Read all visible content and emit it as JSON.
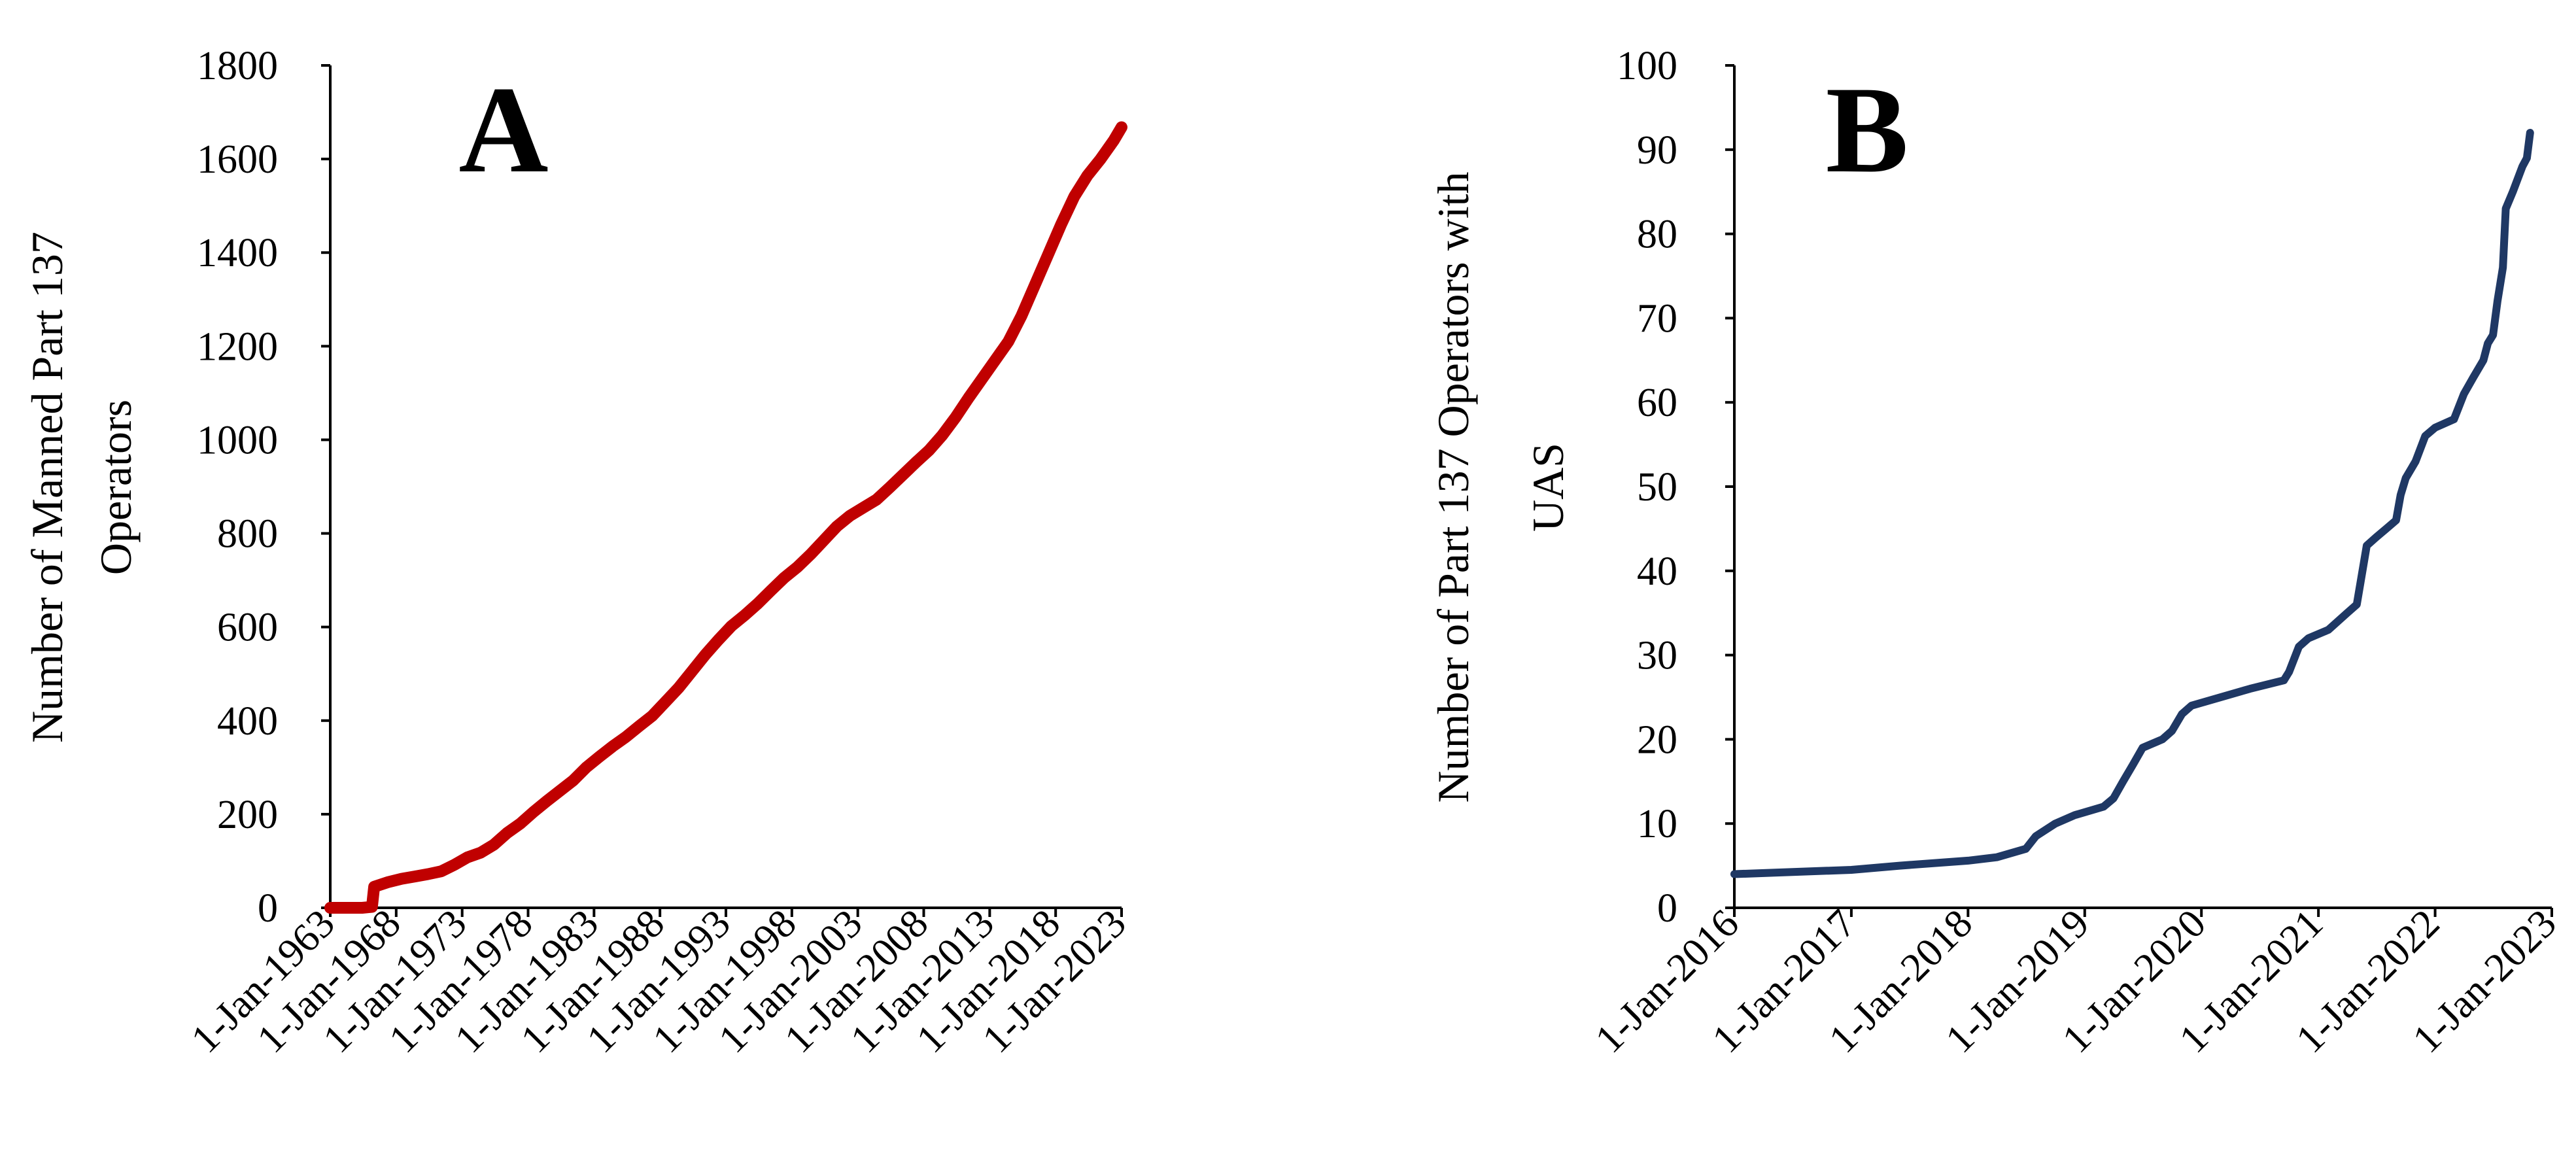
{
  "chart_data": [
    {
      "type": "line",
      "panel_label": "A",
      "title": "",
      "xlabel": "",
      "ylabel_lines": [
        "Number of Manned Part 137",
        "Operators"
      ],
      "ylim": [
        0,
        1800
      ],
      "y_ticks": [
        0,
        200,
        400,
        600,
        800,
        1000,
        1200,
        1400,
        1600,
        1800
      ],
      "x_ticks": [
        {
          "date": "1963-01-01",
          "label": "1-Jan-1963"
        },
        {
          "date": "1968-01-01",
          "label": "1-Jan-1968"
        },
        {
          "date": "1973-01-01",
          "label": "1-Jan-1973"
        },
        {
          "date": "1978-01-01",
          "label": "1-Jan-1978"
        },
        {
          "date": "1983-01-01",
          "label": "1-Jan-1983"
        },
        {
          "date": "1988-01-01",
          "label": "1-Jan-1988"
        },
        {
          "date": "1993-01-01",
          "label": "1-Jan-1993"
        },
        {
          "date": "1998-01-01",
          "label": "1-Jan-1998"
        },
        {
          "date": "2003-01-01",
          "label": "1-Jan-2003"
        },
        {
          "date": "2008-01-01",
          "label": "1-Jan-2008"
        },
        {
          "date": "2013-01-01",
          "label": "1-Jan-2013"
        },
        {
          "date": "2018-01-01",
          "label": "1-Jan-2018"
        },
        {
          "date": "2023-01-01",
          "label": "1-Jan-2023"
        }
      ],
      "grid": false,
      "series": [
        {
          "color": "#c00000",
          "points": [
            [
              "1963-01-01",
              0
            ],
            [
              "1965-06-01",
              0
            ],
            [
              "1966-03-01",
              2
            ],
            [
              "1966-05-01",
              45
            ],
            [
              "1967-06-01",
              55
            ],
            [
              "1968-06-01",
              62
            ],
            [
              "1969-06-01",
              67
            ],
            [
              "1970-06-01",
              72
            ],
            [
              "1971-06-01",
              78
            ],
            [
              "1972-06-01",
              92
            ],
            [
              "1973-06-01",
              108
            ],
            [
              "1974-06-01",
              118
            ],
            [
              "1975-06-01",
              135
            ],
            [
              "1976-06-01",
              160
            ],
            [
              "1977-06-01",
              180
            ],
            [
              "1978-06-01",
              205
            ],
            [
              "1979-06-01",
              228
            ],
            [
              "1980-06-01",
              250
            ],
            [
              "1981-06-01",
              272
            ],
            [
              "1982-06-01",
              300
            ],
            [
              "1983-06-01",
              323
            ],
            [
              "1984-06-01",
              345
            ],
            [
              "1985-06-01",
              365
            ],
            [
              "1986-06-01",
              388
            ],
            [
              "1987-06-01",
              410
            ],
            [
              "1988-06-01",
              440
            ],
            [
              "1989-06-01",
              470
            ],
            [
              "1990-06-01",
              505
            ],
            [
              "1991-06-01",
              540
            ],
            [
              "1992-06-01",
              572
            ],
            [
              "1993-06-01",
              602
            ],
            [
              "1994-06-01",
              625
            ],
            [
              "1995-06-01",
              650
            ],
            [
              "1996-06-01",
              678
            ],
            [
              "1997-06-01",
              705
            ],
            [
              "1998-06-01",
              728
            ],
            [
              "1999-06-01",
              755
            ],
            [
              "2000-06-01",
              785
            ],
            [
              "2001-06-01",
              815
            ],
            [
              "2002-06-01",
              838
            ],
            [
              "2003-06-01",
              855
            ],
            [
              "2004-06-01",
              872
            ],
            [
              "2005-06-01",
              898
            ],
            [
              "2006-06-01",
              925
            ],
            [
              "2007-06-01",
              952
            ],
            [
              "2008-06-01",
              978
            ],
            [
              "2009-06-01",
              1010
            ],
            [
              "2010-06-01",
              1048
            ],
            [
              "2011-06-01",
              1090
            ],
            [
              "2012-06-01",
              1130
            ],
            [
              "2013-06-01",
              1170
            ],
            [
              "2014-06-01",
              1210
            ],
            [
              "2015-06-01",
              1265
            ],
            [
              "2016-06-01",
              1330
            ],
            [
              "2017-06-01",
              1395
            ],
            [
              "2018-06-01",
              1460
            ],
            [
              "2019-06-01",
              1520
            ],
            [
              "2020-06-01",
              1565
            ],
            [
              "2021-06-01",
              1600
            ],
            [
              "2022-06-01",
              1640
            ],
            [
              "2023-01-01",
              1668
            ]
          ]
        }
      ]
    },
    {
      "type": "line",
      "panel_label": "B",
      "title": "",
      "xlabel": "",
      "ylabel_lines": [
        "Number of Part 137 Operators with",
        "UAS"
      ],
      "ylim": [
        0,
        100
      ],
      "y_ticks": [
        0,
        10,
        20,
        30,
        40,
        50,
        60,
        70,
        80,
        90,
        100
      ],
      "x_ticks": [
        {
          "date": "2016-01-01",
          "label": "1-Jan-2016"
        },
        {
          "date": "2017-01-01",
          "label": "1-Jan-2017"
        },
        {
          "date": "2018-01-01",
          "label": "1-Jan-2018"
        },
        {
          "date": "2019-01-01",
          "label": "1-Jan-2019"
        },
        {
          "date": "2020-01-01",
          "label": "1-Jan-2020"
        },
        {
          "date": "2021-01-01",
          "label": "1-Jan-2021"
        },
        {
          "date": "2022-01-01",
          "label": "1-Jan-2022"
        },
        {
          "date": "2023-01-01",
          "label": "1-Jan-2023"
        }
      ],
      "grid": false,
      "series": [
        {
          "color": "#1f3864",
          "points": [
            [
              "2016-01-01",
              4
            ],
            [
              "2017-01-01",
              4.5
            ],
            [
              "2017-06-01",
              5
            ],
            [
              "2018-01-01",
              5.6
            ],
            [
              "2018-04-01",
              6
            ],
            [
              "2018-07-01",
              7
            ],
            [
              "2018-08-01",
              8.5
            ],
            [
              "2018-10-01",
              10
            ],
            [
              "2018-12-01",
              11
            ],
            [
              "2019-03-01",
              12
            ],
            [
              "2019-04-01",
              13
            ],
            [
              "2019-05-01",
              15
            ],
            [
              "2019-06-01",
              17
            ],
            [
              "2019-07-01",
              19
            ],
            [
              "2019-09-01",
              20
            ],
            [
              "2019-10-01",
              21
            ],
            [
              "2019-11-01",
              23
            ],
            [
              "2019-12-01",
              24
            ],
            [
              "2020-06-01",
              26
            ],
            [
              "2020-09-15",
              27
            ],
            [
              "2020-10-01",
              28
            ],
            [
              "2020-11-01",
              31
            ],
            [
              "2020-12-01",
              32
            ],
            [
              "2021-02-01",
              33
            ],
            [
              "2021-04-01",
              35
            ],
            [
              "2021-05-01",
              36
            ],
            [
              "2021-06-01",
              43
            ],
            [
              "2021-07-01",
              44
            ],
            [
              "2021-08-01",
              45
            ],
            [
              "2021-09-01",
              46
            ],
            [
              "2021-09-15",
              49
            ],
            [
              "2021-10-01",
              51
            ],
            [
              "2021-11-01",
              53
            ],
            [
              "2021-12-01",
              56
            ],
            [
              "2022-01-01",
              57
            ],
            [
              "2022-03-01",
              58
            ],
            [
              "2022-04-01",
              61
            ],
            [
              "2022-05-01",
              63
            ],
            [
              "2022-06-01",
              65
            ],
            [
              "2022-06-15",
              67
            ],
            [
              "2022-07-01",
              68
            ],
            [
              "2022-07-15",
              72
            ],
            [
              "2022-08-01",
              76
            ],
            [
              "2022-08-10",
              83
            ],
            [
              "2022-09-01",
              85
            ],
            [
              "2022-10-01",
              88
            ],
            [
              "2022-10-15",
              89
            ],
            [
              "2022-10-25",
              92
            ]
          ]
        }
      ]
    }
  ]
}
